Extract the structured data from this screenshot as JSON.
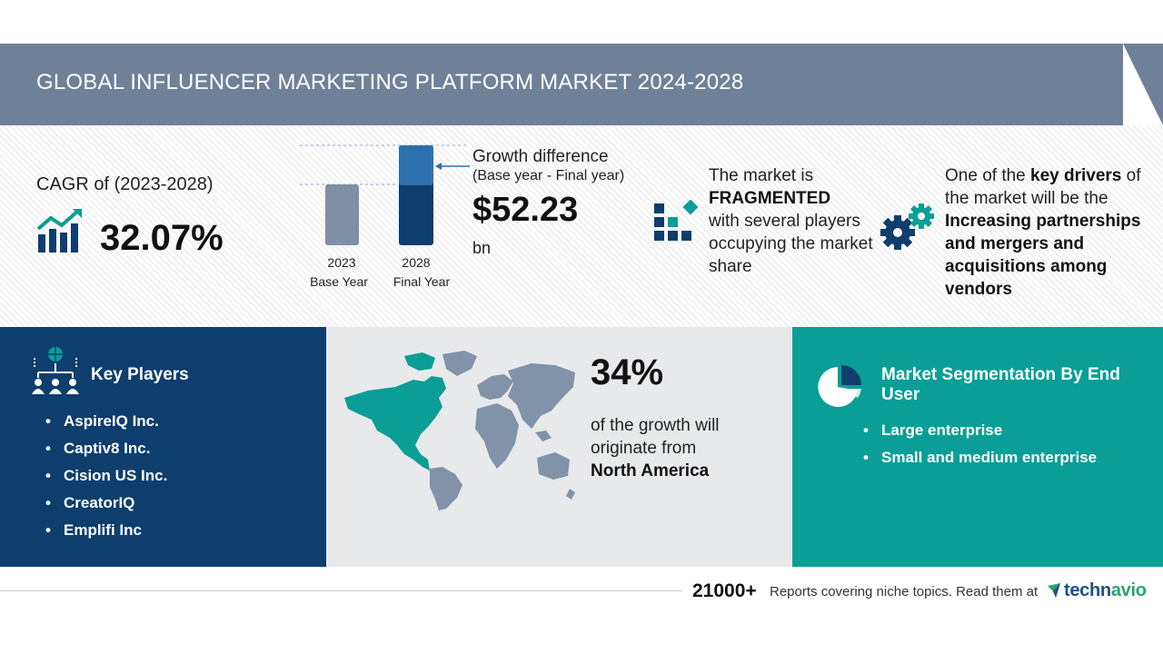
{
  "header": {
    "title": "GLOBAL INFLUENCER MARKETING PLATFORM MARKET 2024-2028"
  },
  "cagr": {
    "label": "CAGR of (2023-2028)",
    "value": "32.07%",
    "icon": "growth-chart-icon"
  },
  "growth": {
    "label": "Growth difference",
    "sublabel": "(Base year - Final year)",
    "value": "$52.23",
    "unit": "bn",
    "bars": [
      {
        "year": "2023",
        "caption": "Base Year"
      },
      {
        "year": "2028",
        "caption": "Final Year"
      }
    ]
  },
  "fragmentation": {
    "line1": "The market is",
    "emphasis": "FRAGMENTED",
    "line2": "with several players occupying the market share",
    "icon": "fragmented-blocks-icon"
  },
  "driver": {
    "prefix": "One of the",
    "emphasis": "key drivers",
    "middle": "of the market will be the",
    "value": "Increasing partnerships and mergers and acquisitions among vendors",
    "icon": "gears-icon"
  },
  "key_players": {
    "title": "Key Players",
    "icon": "network-people-icon",
    "items": [
      "AspireIQ Inc.",
      "Captiv8 Inc.",
      "Cision US Inc.",
      "CreatorIQ",
      "Emplifi Inc"
    ]
  },
  "region": {
    "value": "34%",
    "text": "of the growth will originate from",
    "region": "North America",
    "icon": "world-map-icon"
  },
  "segmentation": {
    "title": "Market Segmentation By End User",
    "icon": "pie-chart-icon",
    "items": [
      "Large enterprise",
      "Small and medium enterprise"
    ]
  },
  "footer": {
    "count": "21000+",
    "text": "Reports covering niche topics. Read them at",
    "brand_main": "techn",
    "brand_accent": "avio"
  },
  "colors": {
    "header": "#6e8199",
    "navy": "#0d3e6e",
    "teal": "#0a9e96",
    "bar_base": "#7f8fa6",
    "bar_final_dark": "#0d3e6e",
    "bar_final_light": "#2e6fad"
  }
}
